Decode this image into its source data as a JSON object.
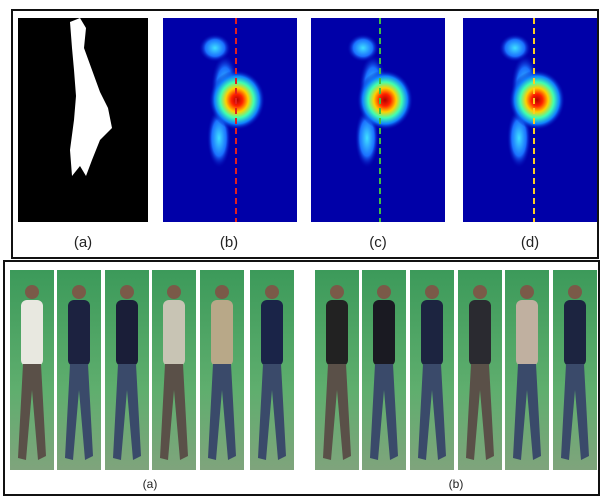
{
  "top_figure": {
    "labels": [
      "(a)",
      "(b)",
      "(c)",
      "(d)"
    ]
  },
  "bottom_figure": {
    "labels": [
      "(a)",
      "(b)"
    ]
  }
}
